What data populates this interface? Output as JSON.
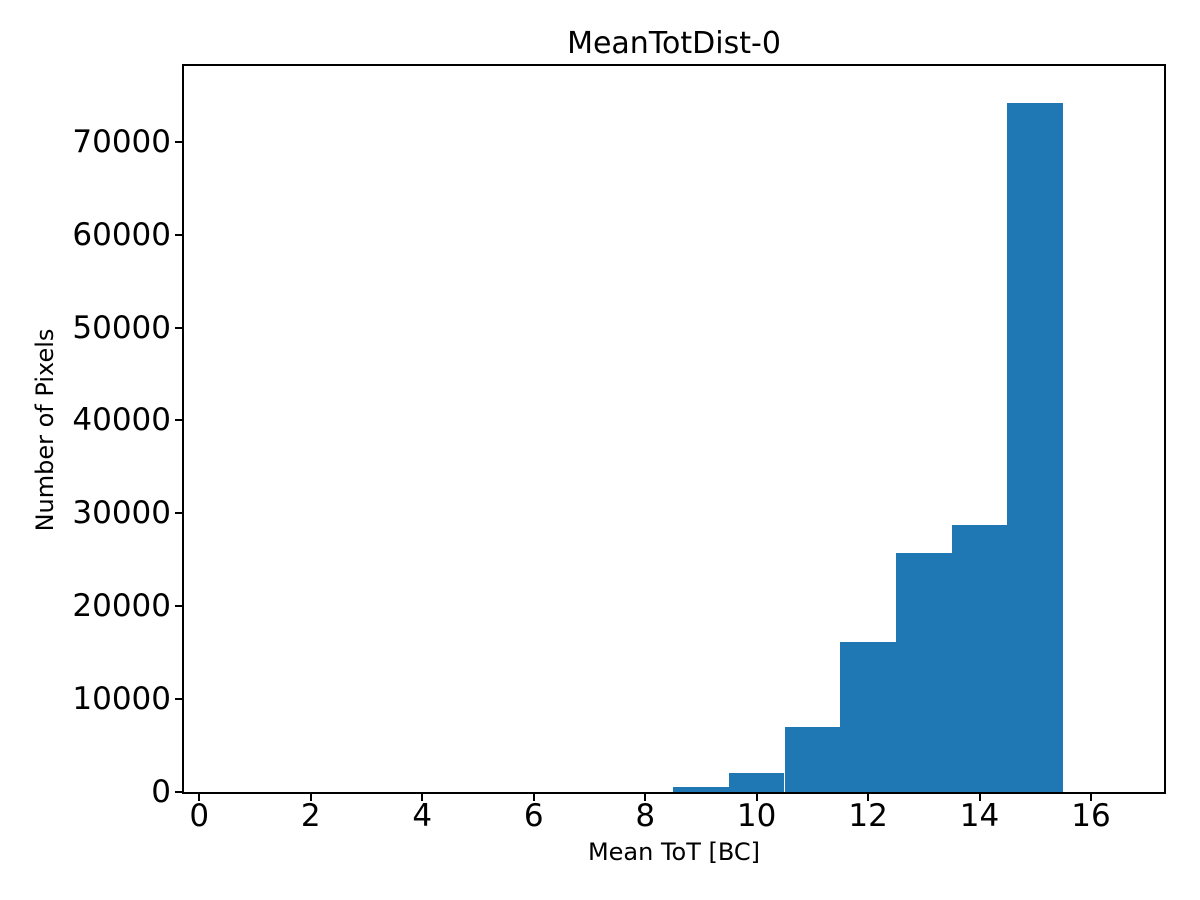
{
  "figure": {
    "background_color": "#ffffff",
    "text_color": "#000000"
  },
  "chart_data": {
    "type": "bar",
    "subtype": "histogram",
    "title": "MeanTotDist-0",
    "xlabel": "Mean ToT [BC]",
    "ylabel": "Number of Pixels",
    "bar_color": "#1f77b4",
    "bin_edges": [
      8.5,
      9.5,
      10.5,
      11.5,
      12.5,
      13.5,
      14.5,
      15.5
    ],
    "counts": [
      500,
      2000,
      7000,
      16200,
      25700,
      28800,
      74200
    ],
    "xticks": [
      0,
      2,
      4,
      6,
      8,
      10,
      12,
      14,
      16
    ],
    "yticks": [
      0,
      10000,
      20000,
      30000,
      40000,
      50000,
      60000,
      70000
    ],
    "xlim": [
      -0.275,
      17.31
    ],
    "ylim": [
      0,
      78150
    ],
    "grid": false,
    "legend": null
  }
}
